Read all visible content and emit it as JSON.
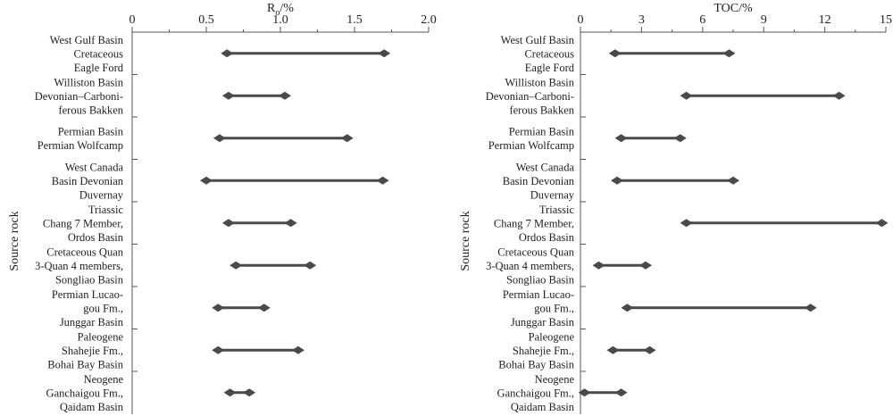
{
  "chart_data": [
    {
      "type": "range",
      "xlabel_main": "R",
      "xlabel_sub": "o",
      "xlabel_unit": "/%",
      "ylabel": "Source rock",
      "xlim": [
        0,
        2.0
      ],
      "ticks": [
        "0",
        "0.5",
        "1.0",
        "1.5",
        "2.0"
      ],
      "tick_values": [
        0,
        0.5,
        1.0,
        1.5,
        2.0
      ],
      "categories": [
        [
          "West Gulf Basin",
          "Cretaceous",
          "Eagle Ford"
        ],
        [
          "Williston Basin",
          "Devonian–Carboni-",
          "ferous Bakken"
        ],
        [
          "Permian Basin",
          "Permian Wolfcamp"
        ],
        [
          "West Canada",
          "Basin Devonian",
          "Duvernay"
        ],
        [
          "Triassic",
          "Chang 7 Member,",
          "Ordos Basin"
        ],
        [
          "Cretaceous Quan",
          "3-Quan 4 members,",
          "Songliao Basin"
        ],
        [
          "Permian Lucao-",
          "gou Fm.,",
          "Junggar Basin"
        ],
        [
          "Paleogene",
          "Shahejie Fm.,",
          "Bohai Bay Basin"
        ],
        [
          "Neogene",
          "Ganchaigou Fm.,",
          "Qaidam Basin"
        ]
      ],
      "ranges": [
        [
          0.64,
          1.7
        ],
        [
          0.65,
          1.03
        ],
        [
          0.59,
          1.45
        ],
        [
          0.5,
          1.69
        ],
        [
          0.65,
          1.07
        ],
        [
          0.7,
          1.2
        ],
        [
          0.58,
          0.89
        ],
        [
          0.58,
          1.12
        ],
        [
          0.66,
          0.79
        ]
      ]
    },
    {
      "type": "range",
      "xlabel_main": "TOC",
      "xlabel_sub": "",
      "xlabel_unit": "/%",
      "ylabel": "Source rock",
      "xlim": [
        0,
        15
      ],
      "ticks": [
        "0",
        "3",
        "6",
        "9",
        "12",
        "15"
      ],
      "tick_values": [
        0,
        3,
        6,
        9,
        12,
        15
      ],
      "categories": [
        [
          "West Gulf Basin",
          "Cretaceous",
          "Eagle Ford"
        ],
        [
          "Williston Basin",
          "Devonian–Carboni-",
          "ferous Bakken"
        ],
        [
          "Permian Basin",
          "Permian Wolfcamp"
        ],
        [
          "West Canada",
          "Basin Devonian",
          "Duvernay"
        ],
        [
          "Triassic",
          "Chang 7 Member,",
          "Ordos Basin"
        ],
        [
          "Cretaceous Quan",
          "3-Quan 4 members,",
          "Songliao Basin"
        ],
        [
          "Permian Lucao-",
          "gou Fm.,",
          "Junggar Basin"
        ],
        [
          "Paleogene",
          "Shahejie Fm.,",
          "Bohai Bay Basin"
        ],
        [
          "Neogene",
          "Ganchaigou Fm.,",
          "Qaidam Basin"
        ]
      ],
      "ranges": [
        [
          1.7,
          7.3
        ],
        [
          5.2,
          12.7
        ],
        [
          2.0,
          4.9
        ],
        [
          1.8,
          7.5
        ],
        [
          5.2,
          14.8
        ],
        [
          0.9,
          3.2
        ],
        [
          2.3,
          11.3
        ],
        [
          1.6,
          3.4
        ],
        [
          0.2,
          2.0
        ]
      ]
    }
  ]
}
